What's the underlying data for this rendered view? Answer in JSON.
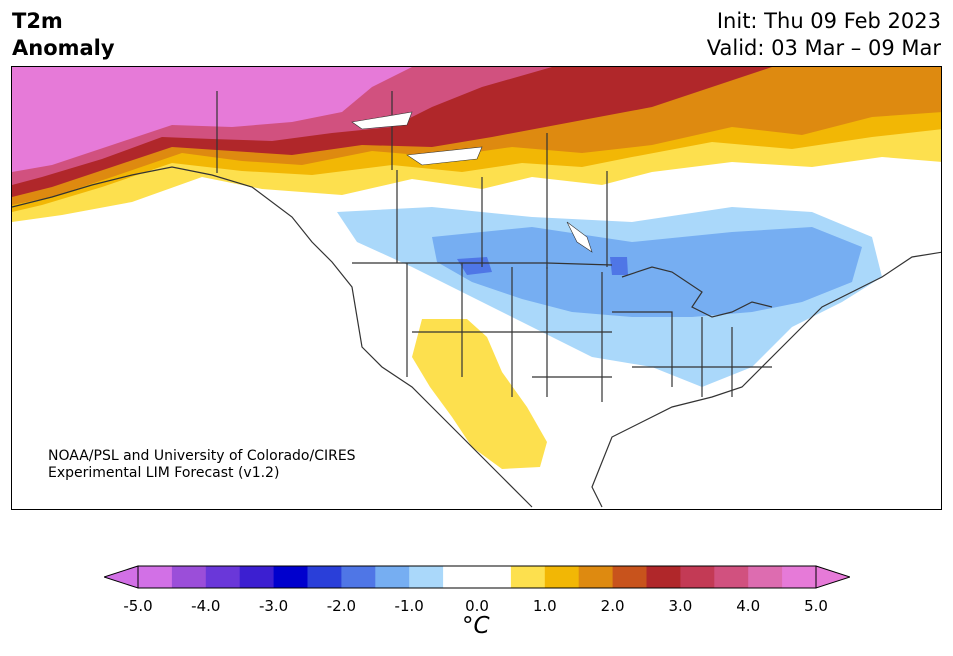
{
  "header": {
    "title_line1": "T2m",
    "title_line2": "Anomaly",
    "init": "Init: Thu 09 Feb 2023",
    "valid": "Valid: 03 Mar – 09 Mar"
  },
  "credit": {
    "line1": "NOAA/PSL and University of Colorado/CIRES",
    "line2": "Experimental LIM Forecast (v1.2)"
  },
  "colorbar": {
    "colors": [
      "#d270e6",
      "#9b4ed9",
      "#6a37d9",
      "#3c1fd1",
      "#0000cd",
      "#2a3fd9",
      "#4f76e6",
      "#76aef2",
      "#aad8fa",
      "#ffffff",
      "#ffffff",
      "#fde04e",
      "#f2b705",
      "#de8a10",
      "#c8531c",
      "#b0272a",
      "#c33a55",
      "#d1517f",
      "#dd6cb0",
      "#e67ad8"
    ],
    "ticks": [
      "-5.0",
      "-4.0",
      "-3.0",
      "-2.0",
      "-1.0",
      "0.0",
      "1.0",
      "2.0",
      "3.0",
      "4.0",
      "5.0"
    ],
    "unit": "°C"
  }
}
